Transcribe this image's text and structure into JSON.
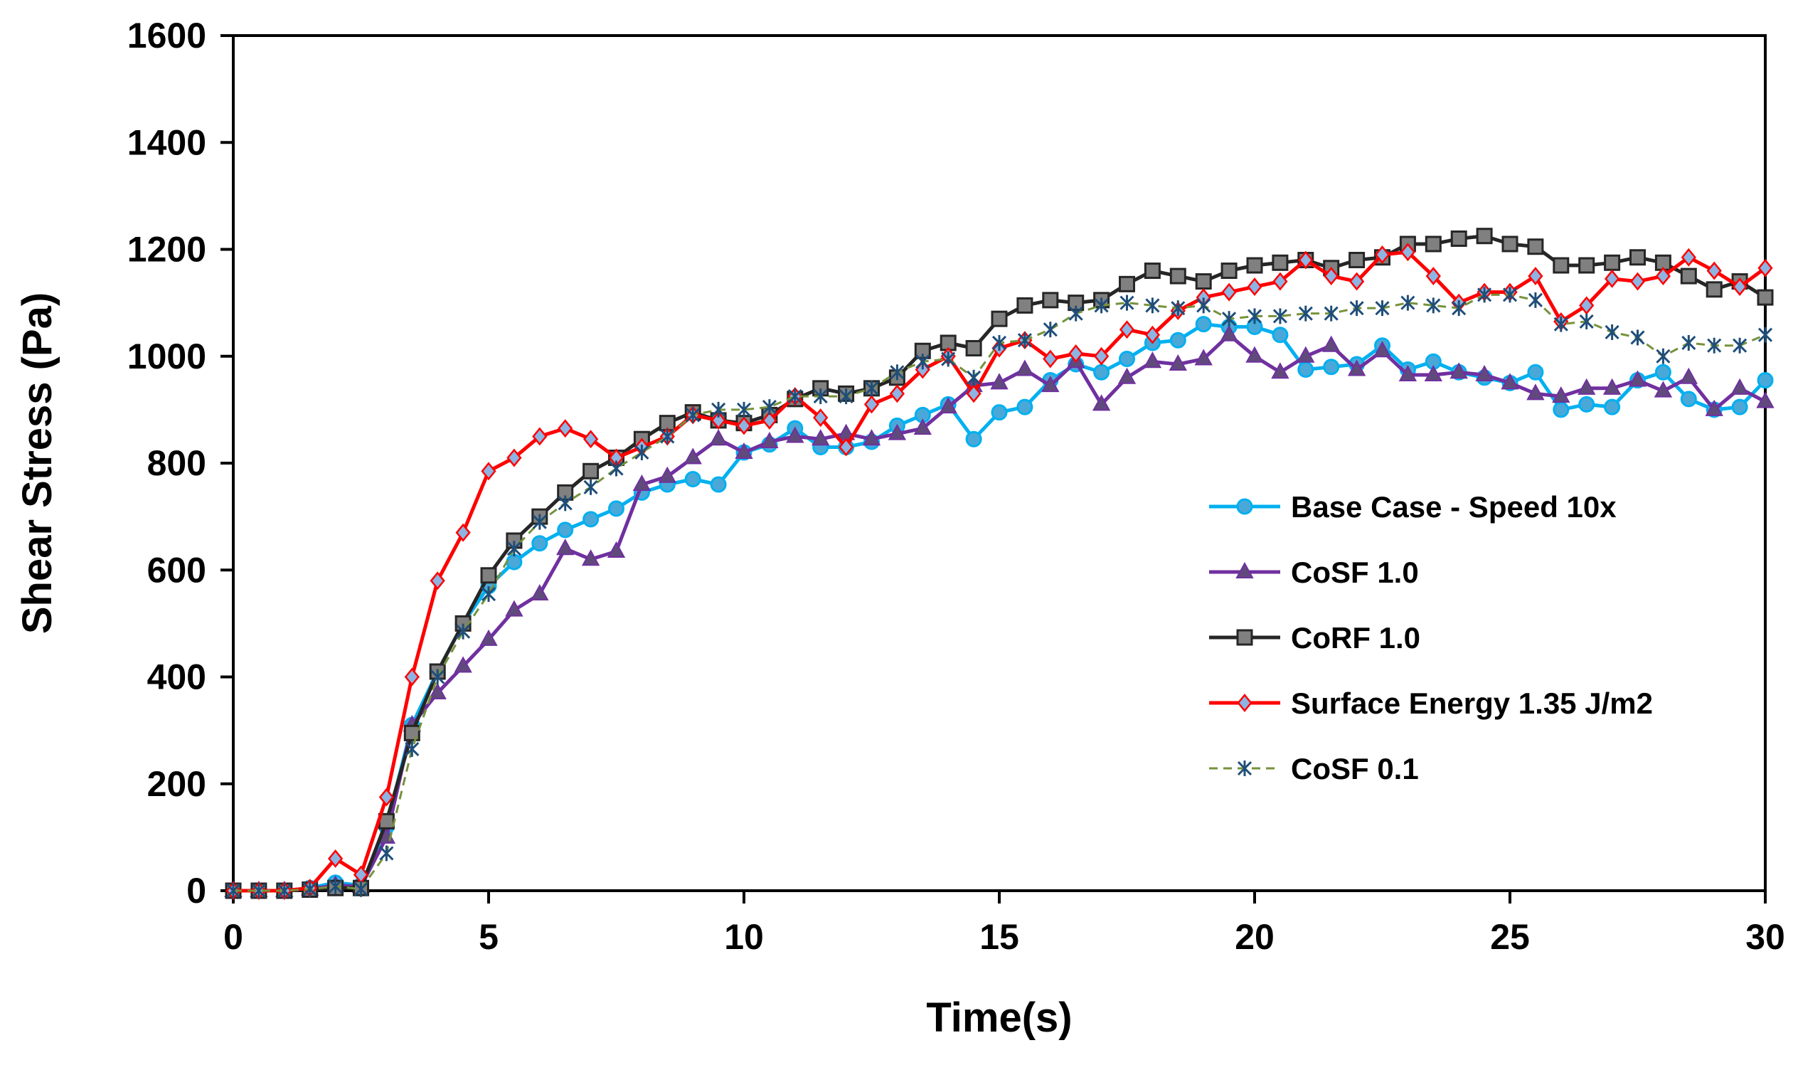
{
  "chart_data": {
    "type": "line",
    "title": "",
    "xlabel": "Time(s)",
    "ylabel": "Shear Stress (Pa)",
    "xlim": [
      0,
      30
    ],
    "ylim": [
      0,
      1600
    ],
    "xticks": [
      "0",
      "5",
      "10",
      "15",
      "20",
      "25",
      "30"
    ],
    "yticks": [
      "0",
      "200",
      "400",
      "600",
      "800",
      "1000",
      "1200",
      "1400",
      "1600"
    ],
    "grid": false,
    "legend_position": "right-middle",
    "x": [
      0,
      0.5,
      1,
      1.5,
      2,
      2.5,
      3,
      3.5,
      4,
      4.5,
      5,
      5.5,
      6,
      6.5,
      7,
      7.5,
      8,
      8.5,
      9,
      9.5,
      10,
      10.5,
      11,
      11.5,
      12,
      12.5,
      13,
      13.5,
      14,
      14.5,
      15,
      15.5,
      16,
      16.5,
      17,
      17.5,
      18,
      18.5,
      19,
      19.5,
      20,
      20.5,
      21,
      21.5,
      22,
      22.5,
      23,
      23.5,
      24,
      24.5,
      25,
      25.5,
      26,
      26.5,
      27,
      27.5,
      28,
      28.5,
      29,
      29.5,
      30
    ],
    "series": [
      {
        "name": "Base Case - Speed 10x",
        "color": "#00b0f0",
        "marker_fill": "#4aa8d8",
        "marker": "circle",
        "dash": false,
        "values": [
          0,
          0,
          0,
          5,
          15,
          10,
          120,
          310,
          410,
          500,
          570,
          615,
          650,
          675,
          695,
          715,
          745,
          760,
          770,
          760,
          820,
          835,
          865,
          830,
          830,
          840,
          870,
          890,
          910,
          845,
          895,
          905,
          955,
          985,
          970,
          995,
          1025,
          1030,
          1060,
          1055,
          1055,
          1040,
          975,
          980,
          985,
          1020,
          975,
          990,
          970,
          960,
          950,
          970,
          900,
          910,
          905,
          955,
          970,
          920,
          900,
          905,
          955
        ]
      },
      {
        "name": "CoSF 1.0",
        "color": "#7030a0",
        "marker_fill": "#604a7b",
        "marker": "triangle",
        "dash": false,
        "values": [
          0,
          0,
          0,
          3,
          10,
          8,
          100,
          310,
          370,
          420,
          470,
          525,
          555,
          640,
          620,
          635,
          760,
          775,
          810,
          845,
          820,
          840,
          850,
          845,
          855,
          845,
          855,
          865,
          905,
          945,
          950,
          975,
          945,
          990,
          910,
          960,
          990,
          985,
          995,
          1040,
          1000,
          970,
          1000,
          1020,
          975,
          1010,
          965,
          965,
          970,
          965,
          950,
          930,
          925,
          940,
          940,
          955,
          935,
          960,
          900,
          940,
          915
        ]
      },
      {
        "name": "CoRF 1.0",
        "color": "#262626",
        "marker_fill": "#808080",
        "marker": "square",
        "dash": false,
        "values": [
          0,
          0,
          0,
          2,
          5,
          5,
          130,
          295,
          410,
          500,
          590,
          655,
          700,
          745,
          785,
          810,
          845,
          875,
          895,
          880,
          875,
          890,
          920,
          940,
          930,
          940,
          960,
          1010,
          1025,
          1015,
          1070,
          1095,
          1105,
          1100,
          1105,
          1135,
          1160,
          1150,
          1140,
          1160,
          1170,
          1175,
          1180,
          1165,
          1180,
          1185,
          1210,
          1210,
          1220,
          1225,
          1210,
          1205,
          1170,
          1170,
          1175,
          1185,
          1175,
          1150,
          1125,
          1140,
          1110
        ]
      },
      {
        "name": "Surface Energy 1.35 J/m2",
        "color": "#ff0000",
        "marker_fill": "#8db4e2",
        "marker": "diamond",
        "dash": false,
        "values": [
          0,
          0,
          0,
          5,
          60,
          30,
          175,
          400,
          580,
          670,
          785,
          810,
          850,
          865,
          845,
          810,
          830,
          850,
          890,
          880,
          870,
          880,
          925,
          885,
          830,
          910,
          930,
          975,
          1000,
          930,
          1015,
          1030,
          995,
          1005,
          1000,
          1050,
          1040,
          1085,
          1110,
          1120,
          1130,
          1140,
          1180,
          1150,
          1140,
          1190,
          1195,
          1150,
          1100,
          1120,
          1120,
          1150,
          1065,
          1095,
          1145,
          1140,
          1150,
          1185,
          1160,
          1130,
          1165
        ]
      },
      {
        "name": "CoSF 0.1",
        "color": "#76923c",
        "marker_fill": "#1f4e79",
        "marker": "star",
        "dash": true,
        "values": [
          0,
          0,
          0,
          3,
          8,
          3,
          70,
          265,
          400,
          485,
          555,
          640,
          690,
          725,
          755,
          790,
          820,
          850,
          890,
          900,
          900,
          905,
          925,
          925,
          925,
          940,
          970,
          990,
          995,
          960,
          1025,
          1030,
          1050,
          1080,
          1095,
          1100,
          1095,
          1090,
          1095,
          1070,
          1075,
          1075,
          1080,
          1080,
          1090,
          1090,
          1100,
          1095,
          1090,
          1115,
          1115,
          1105,
          1060,
          1065,
          1045,
          1035,
          1000,
          1025,
          1020,
          1020,
          1040
        ]
      }
    ]
  }
}
